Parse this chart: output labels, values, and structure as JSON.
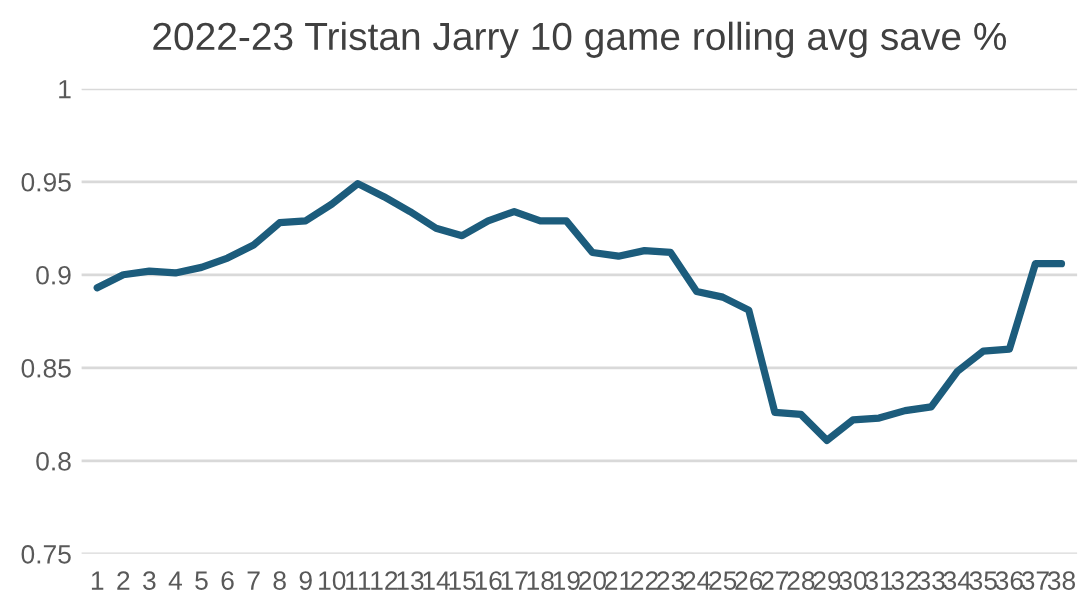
{
  "chart_data": {
    "type": "line",
    "title": "2022-23 Tristan Jarry 10 game rolling avg save %",
    "categories": [
      "1",
      "2",
      "3",
      "4",
      "5",
      "6",
      "7",
      "8",
      "9",
      "10",
      "11",
      "12",
      "13",
      "14",
      "15",
      "16",
      "17",
      "18",
      "19",
      "20",
      "21",
      "22",
      "23",
      "24",
      "25",
      "26",
      "27",
      "28",
      "29",
      "30",
      "31",
      "32",
      "33",
      "34",
      "35",
      "36",
      "37",
      "38"
    ],
    "series": [
      {
        "color": "#1c5c7c",
        "values": [
          0.893,
          0.9,
          0.902,
          0.901,
          0.904,
          0.909,
          0.916,
          0.928,
          0.929,
          0.938,
          0.949,
          0.942,
          0.934,
          0.925,
          0.921,
          0.929,
          0.934,
          0.929,
          0.929,
          0.912,
          0.91,
          0.913,
          0.912,
          0.891,
          0.888,
          0.881,
          0.826,
          0.825,
          0.811,
          0.822,
          0.823,
          0.827,
          0.829,
          0.848,
          0.859,
          0.86,
          0.906,
          0.906
        ]
      }
    ],
    "ylim": [
      0.75,
      1
    ],
    "yticks": [
      0.75,
      0.8,
      0.85,
      0.9,
      0.95,
      1
    ],
    "grid": "y",
    "marker": "none",
    "line_style": "solid"
  }
}
